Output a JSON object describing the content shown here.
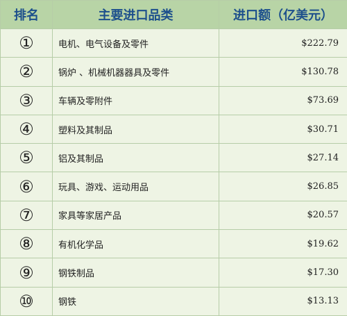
{
  "header": {
    "rank": "排名",
    "category": "主要进口品类",
    "value": "进口额（亿美元）"
  },
  "rows": [
    {
      "rank": "①",
      "category": "电机、电气设备及零件",
      "value": "$222.79"
    },
    {
      "rank": "②",
      "category": "锅炉 、机械机器器具及零件",
      "value": "$130.78"
    },
    {
      "rank": "③",
      "category": "车辆及零附件",
      "value": "$73.69"
    },
    {
      "rank": "④",
      "category": "塑料及其制品",
      "value": "$30.71"
    },
    {
      "rank": "⑤",
      "category": "铝及其制品",
      "value": "$27.14"
    },
    {
      "rank": "⑥",
      "category": "玩具、游戏、运动用品",
      "value": "$26.85"
    },
    {
      "rank": "⑦",
      "category": "家具等家居产品",
      "value": "$20.57"
    },
    {
      "rank": "⑧",
      "category": "有机化学品",
      "value": "$19.62"
    },
    {
      "rank": "⑨",
      "category": "钢铁制品",
      "value": "$17.30"
    },
    {
      "rank": "⑩",
      "category": "钢铁",
      "value": "$13.13"
    }
  ]
}
